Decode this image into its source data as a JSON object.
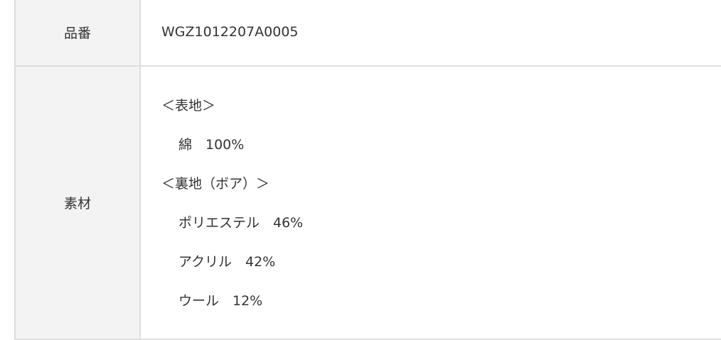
{
  "rows": [
    {
      "label": "品番",
      "value": "WGZ1012207A0005"
    },
    {
      "label": "素材",
      "lines": [
        {
          "text": "＜表地＞",
          "indent": false
        },
        {
          "text": "綿　100%",
          "indent": true
        },
        {
          "text": "＜裏地（ボア）＞",
          "indent": false
        },
        {
          "text": "ポリエステル　46%",
          "indent": true
        },
        {
          "text": "アクリル　42%",
          "indent": true
        },
        {
          "text": "ウール　12%",
          "indent": true
        }
      ]
    }
  ]
}
